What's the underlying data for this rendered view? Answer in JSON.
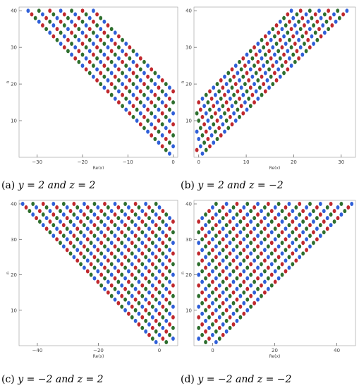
{
  "chart_data": [
    {
      "type": "scatter",
      "panel_label": "(a)",
      "caption": "y = 2 and z = 2",
      "xlabel": "Re(x)",
      "ylabel": "n",
      "xlim": [
        -34,
        1
      ],
      "ylim": [
        0,
        41
      ],
      "xticks": [
        -30,
        -20,
        -10,
        0
      ],
      "xticklabels": [
        "−30",
        "−20",
        "−10",
        "0"
      ],
      "yticks": [
        10,
        20,
        30,
        40
      ],
      "yticklabels": [
        "10",
        "20",
        "30",
        "40"
      ],
      "rays": 7,
      "ray_slope_x": -0.8,
      "ray_shift_step": 3,
      "colors": [
        "#c0282d",
        "#2f5fd8",
        "#2d6e2d"
      ]
    },
    {
      "type": "scatter",
      "panel_label": "(b)",
      "caption": "y = 2 and z = −2",
      "xlabel": "Re(x)",
      "ylabel": "n",
      "xlim": [
        -1,
        33
      ],
      "ylim": [
        0,
        41
      ],
      "xticks": [
        0,
        10,
        20,
        30
      ],
      "xticklabels": [
        "0",
        "10",
        "20",
        "30"
      ],
      "yticks": [
        10,
        20,
        30,
        40
      ],
      "yticklabels": [
        "10",
        "20",
        "30",
        "40"
      ],
      "rays": 7,
      "ray_slope_x": 0.78,
      "ray_shift_step": 2.5,
      "colors": [
        "#c0282d",
        "#2f5fd8",
        "#2d6e2d"
      ]
    },
    {
      "type": "scatter",
      "panel_label": "(c)",
      "caption": "y = −2 and z = 2",
      "xlabel": "Re(x)",
      "ylabel": "n",
      "xlim": [
        -46,
        6
      ],
      "ylim": [
        0,
        41
      ],
      "xticks": [
        -40,
        -20,
        0
      ],
      "xticklabels": [
        "−40",
        "−20",
        "0"
      ],
      "yticks": [
        10,
        20,
        30,
        40
      ],
      "yticklabels": [
        "10",
        "20",
        "30",
        "40"
      ],
      "rays": 14,
      "ray_slope_x": -1.12,
      "ray_shift_step": 3,
      "colors": [
        "#c0282d",
        "#2f5fd8",
        "#2d6e2d"
      ]
    },
    {
      "type": "scatter",
      "panel_label": "(d)",
      "caption": "y = −2 and z = −2",
      "xlabel": "Re(x)",
      "ylabel": "n",
      "xlim": [
        -6,
        46
      ],
      "ylim": [
        0,
        41
      ],
      "xticks": [
        0,
        20,
        40
      ],
      "xticklabels": [
        "0",
        "20",
        "40"
      ],
      "yticks": [
        10,
        20,
        30,
        40
      ],
      "yticklabels": [
        "10",
        "20",
        "30",
        "40"
      ],
      "rays": 14,
      "ray_slope_x": 1.12,
      "ray_shift_step": 3,
      "colors": [
        "#c0282d",
        "#2f5fd8",
        "#2d6e2d"
      ]
    }
  ]
}
